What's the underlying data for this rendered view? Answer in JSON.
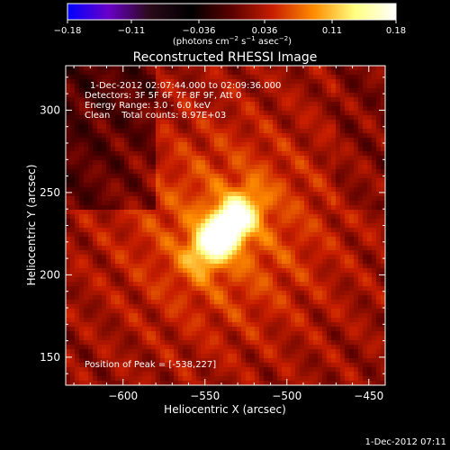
{
  "chart_data": {
    "type": "heatmap",
    "title": "Reconstructed RHESSI Image",
    "xlabel": "Heliocentric X (arcsec)",
    "ylabel": "Heliocentric Y (arcsec)",
    "xlim": [
      -635,
      -440
    ],
    "ylim": [
      133,
      327
    ],
    "x_ticks": [
      -600,
      -550,
      -500,
      -450
    ],
    "x_tick_labels": [
      "−600",
      "−550",
      "−500",
      "−450"
    ],
    "y_ticks": [
      150,
      200,
      250,
      300
    ],
    "y_tick_labels": [
      "150",
      "200",
      "250",
      "300"
    ],
    "colorbar": {
      "range": [
        -0.18,
        0.18
      ],
      "ticks": [
        -0.18,
        -0.11,
        -0.036,
        0.036,
        0.11,
        0.18
      ],
      "tick_labels": [
        "−0.18",
        "−0.11",
        "−0.036",
        "0.036",
        "0.11",
        "0.18"
      ],
      "units_prefix": "(photons cm",
      "units_exp1": "−2",
      "units_mid1": " s",
      "units_exp2": "−1",
      "units_mid2": " asec",
      "units_exp3": "−2",
      "units_suffix": ")",
      "stops": [
        "#0000ff",
        "#6a00c8",
        "#2a0a18",
        "#000000",
        "#5a0000",
        "#c81e00",
        "#ff8c00",
        "#ffff80",
        "#ffffff"
      ]
    },
    "peak": {
      "x": -538,
      "y": 227,
      "value": 0.18
    },
    "grid": false,
    "annotations": {
      "time_range": "1-Dec-2012 02:07:44.000 to 02:09:36.000",
      "detectors": "Detectors: 3F 5F 6F 7F 8F 9F, Att 0",
      "energy": "Energy Range: 3.0 - 6.0 keV",
      "clean": "Clean    Total counts: 8.97E+03",
      "peak_position": "Position of Peak = [-538,227]"
    }
  },
  "footer_timestamp": "1-Dec-2012 07:11"
}
